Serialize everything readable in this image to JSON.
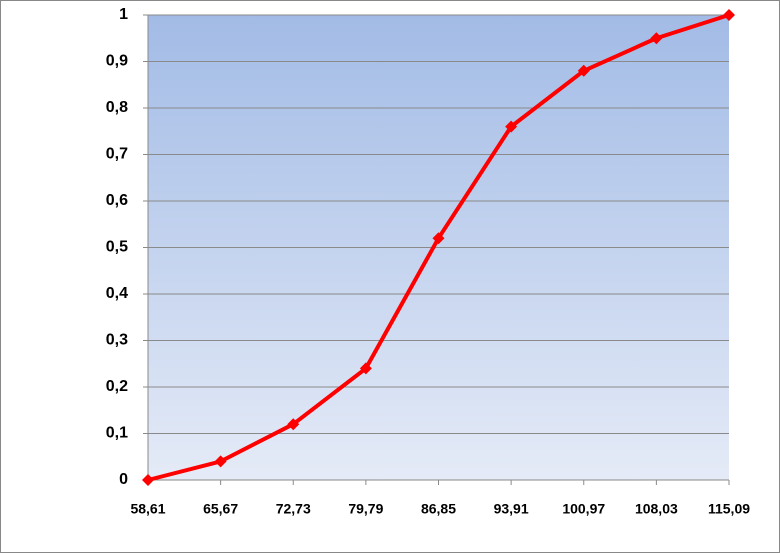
{
  "chart_data": {
    "type": "line",
    "categories": [
      "58,61",
      "65,67",
      "72,73",
      "79,79",
      "86,85",
      "93,91",
      "100,97",
      "108,03",
      "115,09"
    ],
    "series": [
      {
        "color": "#ff0000",
        "values": [
          0,
          0.04,
          0.12,
          0.24,
          0.52,
          0.76,
          0.88,
          0.95,
          1
        ]
      }
    ],
    "ylim": [
      0,
      1
    ],
    "yticks": [
      0,
      {
        "value": 0.1,
        "label": "0,1"
      },
      {
        "value": 0.2,
        "label": "0,2"
      },
      {
        "value": 0.3,
        "label": "0,3"
      },
      {
        "value": 0.4,
        "label": "0,4"
      },
      {
        "value": 0.5,
        "label": "0,5"
      },
      {
        "value": 0.6,
        "label": "0,6"
      },
      {
        "value": 0.7,
        "label": "0,7"
      },
      {
        "value": 0.8,
        "label": "0,8"
      },
      {
        "value": 0.9,
        "label": "0,9"
      },
      1
    ],
    "grid": true
  }
}
